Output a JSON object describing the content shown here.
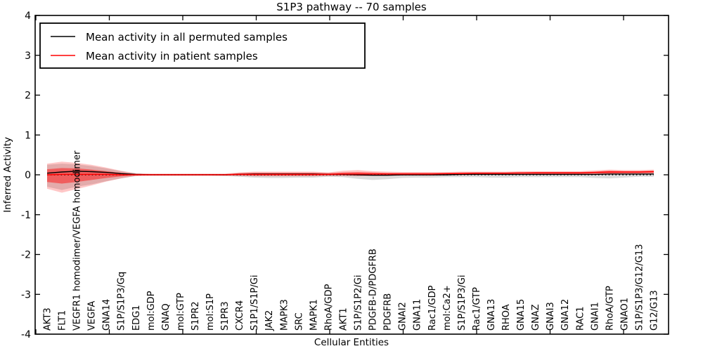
{
  "figure": {
    "title": "S1P3 pathway -- 70 samples",
    "xlabel": "Cellular Entities",
    "ylabel": "Inferred Activity",
    "background_color": "#ffffff",
    "frame_color": "#000000"
  },
  "legend": {
    "entries": [
      {
        "label": "Mean activity in all permuted samples",
        "color": "#000000"
      },
      {
        "label": "Mean activity in patient samples",
        "color": "#ff0000"
      }
    ]
  },
  "axes": {
    "y_tick_labels": [
      "4",
      "3",
      "2",
      "1",
      "0",
      "-1",
      "-2",
      "-3",
      "-4"
    ],
    "y_tick_values": [
      4,
      3,
      2,
      1,
      0,
      -1,
      -2,
      -3,
      -4
    ],
    "ylim": [
      -4,
      4
    ]
  },
  "chart_data": {
    "type": "line",
    "title": "S1P3 pathway -- 70 samples",
    "xlabel": "Cellular Entities",
    "ylabel": "Inferred Activity",
    "ylim": [
      -4,
      4
    ],
    "grid": false,
    "legend_position": "upper left",
    "categories": [
      "AKT3",
      "FLT1",
      "VEGFR1 homodimer/VEGFA homodimer",
      "VEGFA",
      "GNA14",
      "S1P/S1P3/Gq",
      "EDG1",
      "mol:GDP",
      "GNAQ",
      "mol:GTP",
      "S1PR2",
      "mol:S1P",
      "S1PR3",
      "CXCR4",
      "S1P1/S1P/Gi",
      "JAK2",
      "MAPK3",
      "SRC",
      "MAPK1",
      "RhoA/GDP",
      "AKT1",
      "S1P/S1P2/Gi",
      "PDGFB-D/PDGFRB",
      "PDGFRB",
      "GNAI2",
      "GNA11",
      "Rac1/GDP",
      "mol:Ca2+",
      "S1P/S1P3/Gi",
      "Rac1/GTP",
      "GNA13",
      "RHOA",
      "GNA15",
      "GNAZ",
      "GNAI3",
      "GNA12",
      "RAC1",
      "GNAI1",
      "RhoA/GTP",
      "GNAO1",
      "S1P/S1P3/G12/G13",
      "G12/G13"
    ],
    "series": [
      {
        "name": "Mean activity in all permuted samples",
        "color": "#000000",
        "values": [
          0.04,
          0.07,
          0.09,
          0.08,
          0.06,
          0.03,
          0.01,
          0.0,
          0.0,
          0.0,
          0.0,
          0.0,
          0.0,
          0.01,
          0.02,
          0.02,
          0.02,
          0.02,
          0.02,
          0.01,
          0.01,
          0.0,
          -0.01,
          -0.01,
          0.0,
          0.0,
          0.0,
          0.0,
          0.01,
          0.01,
          0.01,
          0.01,
          0.01,
          0.01,
          0.01,
          0.01,
          0.01,
          0.01,
          0.02,
          0.02,
          0.02,
          0.02
        ]
      },
      {
        "name": "Mean activity in patient samples",
        "color": "#ff0000",
        "values": [
          0.0,
          0.01,
          0.01,
          0.01,
          0.01,
          0.0,
          0.0,
          0.0,
          0.0,
          0.0,
          0.0,
          0.0,
          0.0,
          0.01,
          0.01,
          0.01,
          0.01,
          0.01,
          0.01,
          0.01,
          0.02,
          0.02,
          0.02,
          0.02,
          0.02,
          0.02,
          0.02,
          0.03,
          0.03,
          0.04,
          0.04,
          0.04,
          0.05,
          0.05,
          0.05,
          0.05,
          0.05,
          0.06,
          0.07,
          0.07,
          0.07,
          0.08
        ]
      }
    ],
    "bands": [
      {
        "name": "permuted-samples-range",
        "color": "rgba(0,0,0,0.14)",
        "upper": [
          0.25,
          0.28,
          0.26,
          0.22,
          0.16,
          0.09,
          0.03,
          0.02,
          0.02,
          0.02,
          0.02,
          0.02,
          0.02,
          0.04,
          0.05,
          0.05,
          0.05,
          0.05,
          0.05,
          0.04,
          0.05,
          0.04,
          0.03,
          0.03,
          0.03,
          0.03,
          0.03,
          0.03,
          0.04,
          0.04,
          0.04,
          0.04,
          0.04,
          0.04,
          0.04,
          0.04,
          0.04,
          0.04,
          0.04,
          0.04,
          0.04,
          0.05
        ],
        "lower": [
          -0.3,
          -0.38,
          -0.3,
          -0.24,
          -0.16,
          -0.09,
          -0.03,
          -0.02,
          -0.02,
          -0.02,
          -0.02,
          -0.02,
          -0.03,
          -0.05,
          -0.07,
          -0.08,
          -0.08,
          -0.07,
          -0.07,
          -0.05,
          -0.06,
          -0.1,
          -0.13,
          -0.11,
          -0.08,
          -0.07,
          -0.07,
          -0.06,
          -0.06,
          -0.06,
          -0.07,
          -0.07,
          -0.06,
          -0.06,
          -0.06,
          -0.06,
          -0.06,
          -0.08,
          -0.09,
          -0.07,
          -0.05,
          -0.05
        ]
      },
      {
        "name": "patient-samples-range-outer",
        "color": "rgba(255,0,0,0.22)",
        "upper": [
          0.28,
          0.33,
          0.3,
          0.25,
          0.18,
          0.1,
          0.04,
          0.03,
          0.03,
          0.03,
          0.03,
          0.03,
          0.03,
          0.06,
          0.08,
          0.08,
          0.08,
          0.08,
          0.08,
          0.06,
          0.1,
          0.12,
          0.09,
          0.08,
          0.07,
          0.07,
          0.07,
          0.07,
          0.08,
          0.08,
          0.08,
          0.08,
          0.09,
          0.09,
          0.09,
          0.09,
          0.09,
          0.11,
          0.13,
          0.12,
          0.12,
          0.13
        ],
        "lower": [
          -0.35,
          -0.45,
          -0.36,
          -0.27,
          -0.17,
          -0.09,
          -0.03,
          -0.02,
          -0.02,
          -0.02,
          -0.02,
          -0.02,
          -0.02,
          -0.03,
          -0.04,
          -0.04,
          -0.04,
          -0.04,
          -0.04,
          -0.03,
          -0.03,
          -0.04,
          -0.03,
          -0.03,
          -0.02,
          -0.02,
          -0.02,
          -0.01,
          -0.01,
          0.0,
          0.0,
          0.0,
          0.0,
          0.01,
          0.01,
          0.01,
          0.01,
          0.01,
          0.02,
          0.02,
          0.03,
          0.03
        ]
      },
      {
        "name": "patient-samples-range-inner",
        "color": "rgba(255,0,0,0.45)",
        "upper": [
          0.14,
          0.17,
          0.16,
          0.13,
          0.09,
          0.05,
          0.02,
          0.015,
          0.015,
          0.015,
          0.015,
          0.015,
          0.015,
          0.04,
          0.05,
          0.05,
          0.05,
          0.05,
          0.05,
          0.04,
          0.06,
          0.07,
          0.06,
          0.05,
          0.05,
          0.05,
          0.05,
          0.05,
          0.06,
          0.06,
          0.06,
          0.06,
          0.06,
          0.07,
          0.07,
          0.07,
          0.07,
          0.08,
          0.1,
          0.09,
          0.09,
          0.1
        ],
        "lower": [
          -0.18,
          -0.22,
          -0.18,
          -0.13,
          -0.08,
          -0.04,
          -0.01,
          -0.01,
          -0.01,
          -0.01,
          -0.01,
          -0.01,
          -0.01,
          -0.01,
          -0.02,
          -0.02,
          -0.02,
          -0.02,
          -0.02,
          -0.01,
          -0.01,
          -0.01,
          -0.01,
          -0.01,
          0.0,
          0.0,
          0.0,
          0.0,
          0.01,
          0.01,
          0.01,
          0.01,
          0.02,
          0.02,
          0.02,
          0.02,
          0.02,
          0.03,
          0.03,
          0.04,
          0.04,
          0.05
        ]
      }
    ],
    "zero_line": {
      "value": 0,
      "style": "dotted",
      "color": "#000000"
    }
  }
}
